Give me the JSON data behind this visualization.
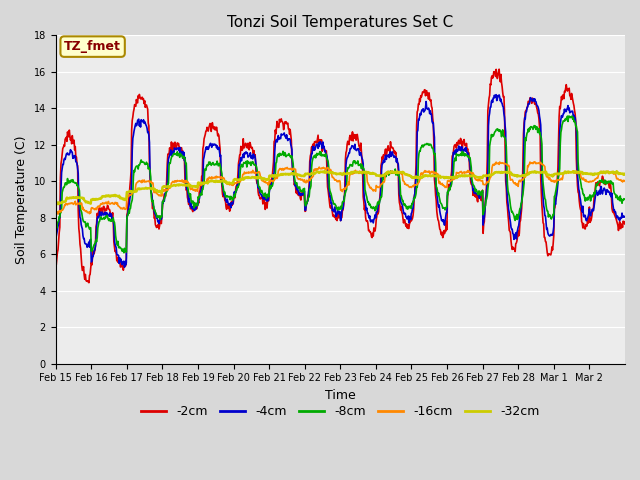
{
  "title": "Tonzi Soil Temperatures Set C",
  "xlabel": "Time",
  "ylabel": "Soil Temperature (C)",
  "ylim": [
    0,
    18
  ],
  "yticks": [
    0,
    2,
    4,
    6,
    8,
    10,
    12,
    14,
    16,
    18
  ],
  "annotation_text": "TZ_fmet",
  "annotation_color": "#880000",
  "annotation_bg": "#ffffcc",
  "annotation_border": "#aa8800",
  "series_keys": [
    "-2cm",
    "-4cm",
    "-8cm",
    "-16cm",
    "-32cm"
  ],
  "series_colors": [
    "#dd0000",
    "#0000cc",
    "#00aa00",
    "#ff8800",
    "#cccc00"
  ],
  "series_lw": [
    1.2,
    1.2,
    1.2,
    1.2,
    1.8
  ],
  "fig_bg": "#d8d8d8",
  "plot_bg": "#ececec",
  "grid_color": "#ffffff",
  "xtick_labels": [
    "Feb 15",
    "Feb 16",
    "Feb 17",
    "Feb 18",
    "Feb 19",
    "Feb 20",
    "Feb 21",
    "Feb 22",
    "Feb 23",
    "Feb 24",
    "Feb 25",
    "Feb 26",
    "Feb 27",
    "Feb 28",
    "Mar 1",
    "Mar 2"
  ],
  "figsize": [
    6.4,
    4.8
  ],
  "dpi": 100
}
